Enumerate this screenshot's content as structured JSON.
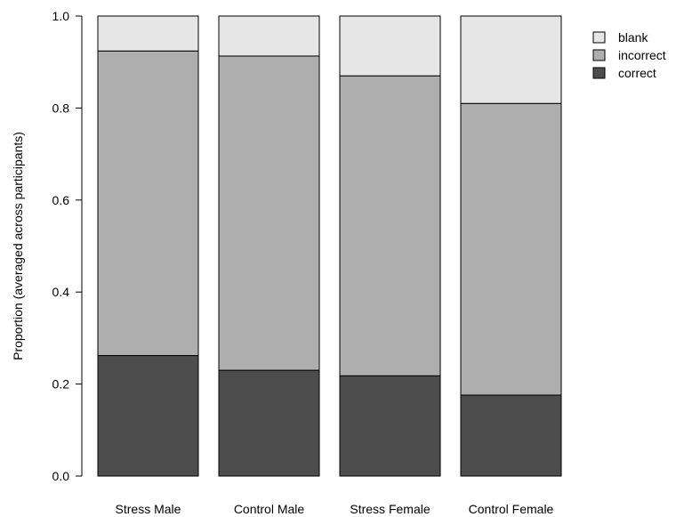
{
  "chart_data": {
    "type": "bar",
    "stacked": true,
    "categories": [
      "Stress Male",
      "Control Male",
      "Stress Female",
      "Control Female"
    ],
    "series": [
      {
        "name": "correct",
        "values": [
          0.262,
          0.23,
          0.218,
          0.176
        ],
        "color": "#4d4d4d"
      },
      {
        "name": "incorrect",
        "values": [
          0.662,
          0.683,
          0.652,
          0.634
        ],
        "color": "#aeaeae"
      },
      {
        "name": "blank",
        "values": [
          0.076,
          0.087,
          0.13,
          0.19
        ],
        "color": "#e6e6e6"
      }
    ],
    "title": "",
    "xlabel": "",
    "ylabel": "Proportion (averaged across participants)",
    "ylim": [
      0,
      1.0
    ],
    "yticks": [
      "0.0",
      "0.2",
      "0.4",
      "0.6",
      "0.8",
      "1.0"
    ],
    "legend": {
      "position": "top-right",
      "entries": [
        "blank",
        "incorrect",
        "correct"
      ]
    },
    "grid": false
  }
}
